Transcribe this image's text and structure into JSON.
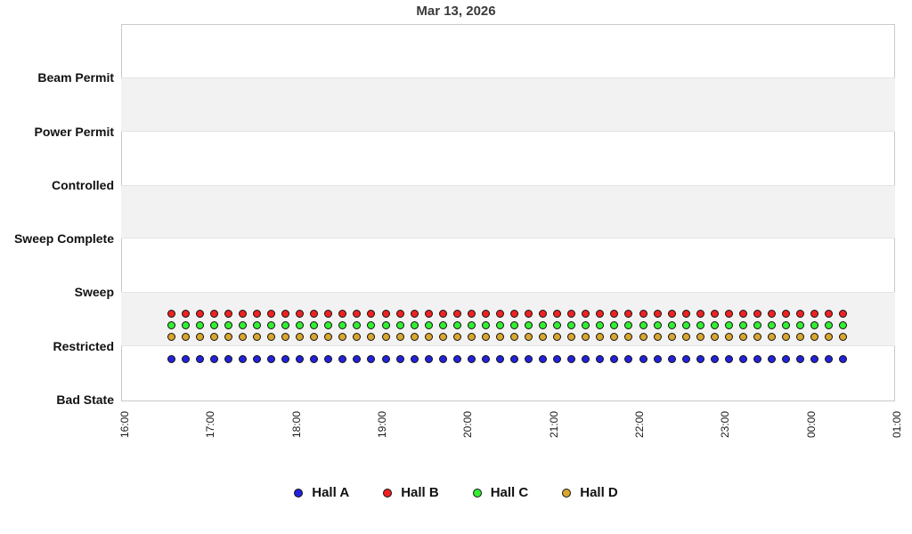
{
  "chart_data": {
    "type": "scatter",
    "title": "Mar 13, 2026",
    "y_categories": [
      "Beam Permit",
      "Power Permit",
      "Controlled",
      "Sweep Complete",
      "Sweep",
      "Restricted",
      "Bad State"
    ],
    "x_ticks": [
      "16:00",
      "17:00",
      "18:00",
      "19:00",
      "20:00",
      "21:00",
      "22:00",
      "23:00",
      "00:00",
      "01:00"
    ],
    "points_start_time": "16:35",
    "points_end_time": "00:25",
    "point_interval_minutes": 10,
    "points_per_series": 48,
    "start_offset_minutes": 35,
    "series": [
      {
        "name": "Hall A",
        "color": "#2222dd",
        "state": "Restricted",
        "offset_units": -0.24
      },
      {
        "name": "Hall B",
        "color": "#ee2222",
        "state": "Restricted",
        "offset_units": 0.6
      },
      {
        "name": "Hall C",
        "color": "#33ee33",
        "state": "Restricted",
        "offset_units": 0.38
      },
      {
        "name": "Hall D",
        "color": "#d9a62e",
        "state": "Restricted",
        "offset_units": 0.17
      }
    ],
    "legend_position": "bottom",
    "grid": "alternating-bands",
    "band_color": "#f2f2f2"
  }
}
